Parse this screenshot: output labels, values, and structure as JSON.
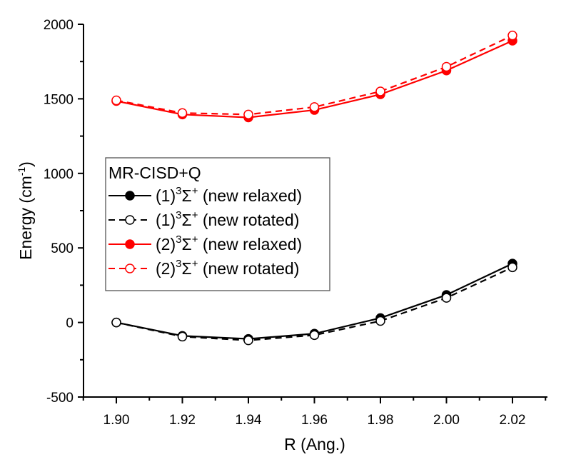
{
  "chart_data": {
    "type": "line",
    "title": "",
    "xlabel": "R (Ang.)",
    "ylabel": "Energy (cm",
    "ylabel_sup": "-1",
    "ylabel_close": ")",
    "xlim": [
      1.89,
      2.03
    ],
    "ylim": [
      -500,
      2000
    ],
    "x_ticks": [
      1.9,
      1.92,
      1.94,
      1.96,
      1.98,
      2.0,
      2.02
    ],
    "x_tick_labels": [
      "1.90",
      "1.92",
      "1.94",
      "1.96",
      "1.98",
      "2.00",
      "2.02"
    ],
    "x_minor_ticks": [
      1.89,
      1.91,
      1.93,
      1.95,
      1.97,
      1.99,
      2.01,
      2.03
    ],
    "y_ticks": [
      -500,
      0,
      500,
      1000,
      1500,
      2000
    ],
    "y_tick_labels": [
      "-500",
      "0",
      "500",
      "1000",
      "1500",
      "2000"
    ],
    "y_minor_ticks": [
      -250,
      250,
      750,
      1250,
      1750
    ],
    "grid": false,
    "x": [
      1.9,
      1.92,
      1.94,
      1.96,
      1.98,
      2.0,
      2.02
    ],
    "legend": {
      "title": "MR-CISD+Q",
      "placement": "center-left"
    },
    "series": [
      {
        "name": "(1)3Σ+ (new relaxed)",
        "label_prefix": "(1)",
        "label_sup": "3",
        "label_sym": "Σ",
        "label_sup2": "+",
        "label_suffix": " (new relaxed)",
        "color": "#000000",
        "line": "solid",
        "marker": "filled-circle",
        "values": [
          0,
          -90,
          -110,
          -75,
          30,
          185,
          395
        ]
      },
      {
        "name": "(1)3Σ+ (new rotated)",
        "label_prefix": "(1)",
        "label_sup": "3",
        "label_sym": "Σ",
        "label_sup2": "+",
        "label_suffix": " (new rotated)",
        "color": "#000000",
        "line": "dashed",
        "marker": "open-circle",
        "values": [
          0,
          -95,
          -120,
          -85,
          10,
          165,
          370
        ]
      },
      {
        "name": "(2)3Σ+ (new relaxed)",
        "label_prefix": "(2)",
        "label_sup": "3",
        "label_sym": "Σ",
        "label_sup2": "+",
        "label_suffix": " (new relaxed)",
        "color": "#ff0000",
        "line": "solid",
        "marker": "filled-circle",
        "values": [
          1485,
          1395,
          1375,
          1425,
          1530,
          1690,
          1890
        ]
      },
      {
        "name": "(2)3Σ+ (new rotated)",
        "label_prefix": "(2)",
        "label_sup": "3",
        "label_sym": "Σ",
        "label_sup2": "+",
        "label_suffix": " (new rotated)",
        "color": "#ff0000",
        "line": "dashed",
        "marker": "open-circle",
        "values": [
          1490,
          1405,
          1395,
          1445,
          1550,
          1715,
          1925
        ]
      }
    ]
  }
}
